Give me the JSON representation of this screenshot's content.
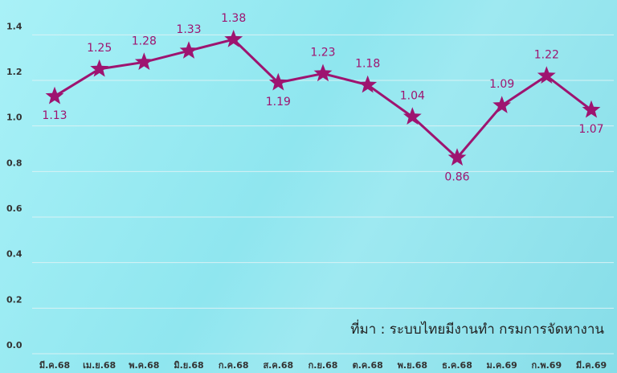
{
  "chart_data": {
    "type": "line",
    "categories": [
      "มี.ค.68",
      "เม.ย.68",
      "พ.ค.68",
      "มิ.ย.68",
      "ก.ค.68",
      "ส.ค.68",
      "ก.ย.68",
      "ต.ค.68",
      "พ.ย.68",
      "ธ.ค.68",
      "ม.ค.69",
      "ก.พ.69",
      "มี.ค.69"
    ],
    "series": [
      {
        "color": "#9e1470",
        "values": [
          1.13,
          1.25,
          1.28,
          1.33,
          1.38,
          1.19,
          1.23,
          1.18,
          1.04,
          0.86,
          1.09,
          1.22,
          1.07
        ]
      }
    ],
    "ylim": [
      0,
      1.5
    ],
    "yticks": [
      {
        "value": 0,
        "label": "0.0"
      },
      0.2,
      0.4,
      0.6,
      0.8,
      {
        "value": 1,
        "label": "1.0"
      },
      1.2,
      1.4
    ],
    "grid": true,
    "source": "ที่มา : ระบบไทยมีงานทำ กรมการจัดหางาน"
  }
}
